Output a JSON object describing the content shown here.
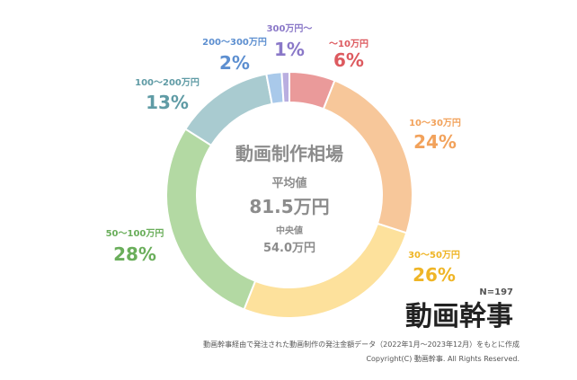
{
  "chart_data": {
    "type": "pie",
    "title": "動画制作相場",
    "categories": [
      "〜10万円",
      "10〜30万円",
      "30〜50万円",
      "50〜100万円",
      "100〜200万円",
      "200〜300万円",
      "300万円〜"
    ],
    "values": [
      6,
      24,
      26,
      28,
      13,
      2,
      1
    ],
    "value_labels": [
      "6%",
      "24%",
      "26%",
      "28%",
      "13%",
      "2%",
      "1%"
    ],
    "colors": [
      "#ea9a9a",
      "#f7c79a",
      "#fde19c",
      "#b3d9a3",
      "#a9cbd0",
      "#a9c9ea",
      "#b9aee0"
    ],
    "label_colors": [
      "#dd5a5f",
      "#f2a25b",
      "#efb526",
      "#6aae5b",
      "#5f9ba5",
      "#5d8fd0",
      "#8a78c8"
    ],
    "legend": "labels placed around the ring",
    "center": {
      "avg_label": "平均値",
      "avg_value": "81.5万円",
      "median_label": "中央値",
      "median_value": "54.0万円"
    }
  },
  "sample_size": "N=197",
  "brand": "動画幹事",
  "footer": {
    "source": "動画幹事経由で発注された動画制作の発注金額データ（2022年1月〜2023年12月）をもとに作成",
    "copyright": "Copyright(C) 動画幹事. All Rights Reserved."
  }
}
